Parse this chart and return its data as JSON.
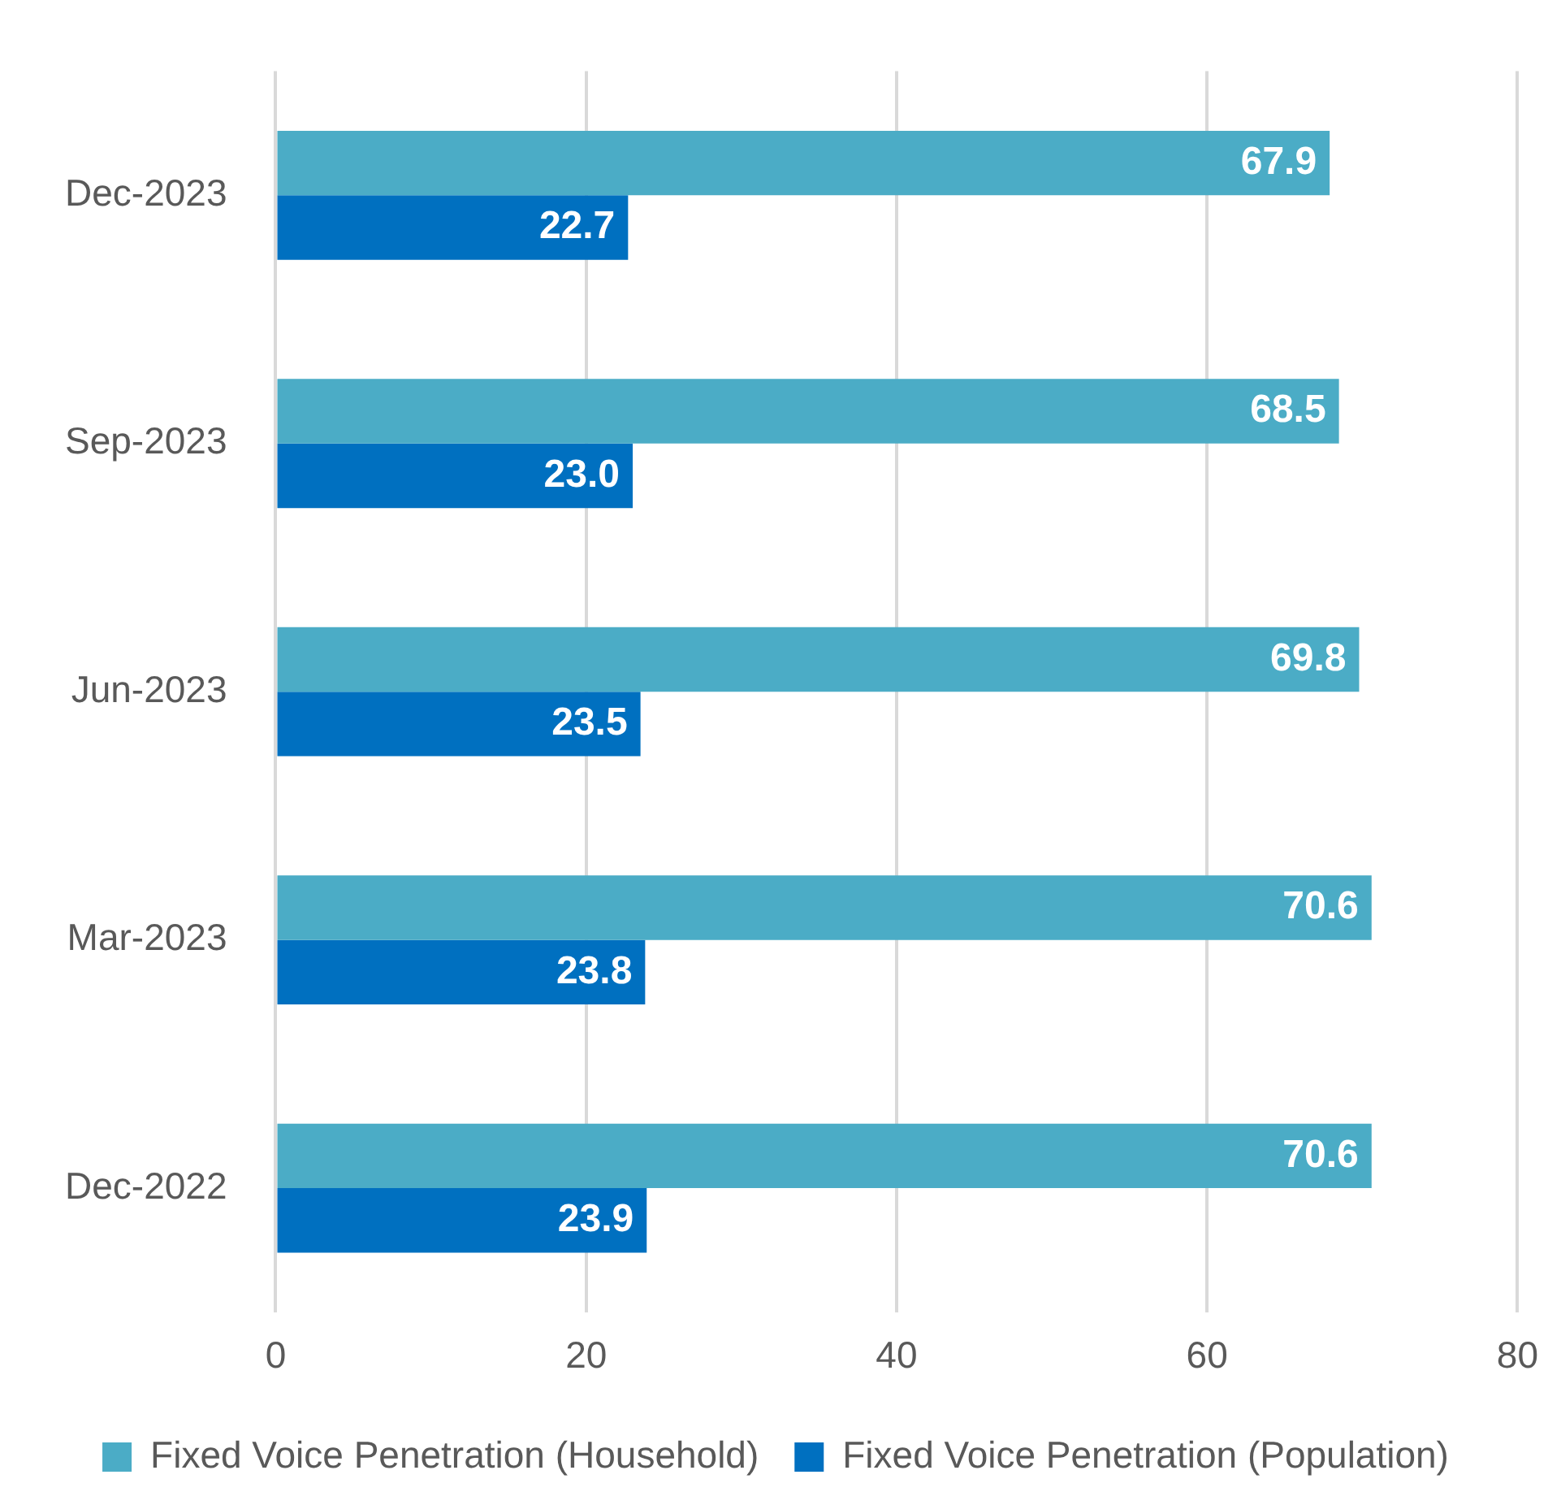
{
  "chart_data": {
    "type": "bar",
    "orientation": "horizontal",
    "categories": [
      "Dec-2023",
      "Sep-2023",
      "Jun-2023",
      "Mar-2023",
      "Dec-2022"
    ],
    "series": [
      {
        "name": "Fixed Voice Penetration (Household)",
        "color": "#4bacc6",
        "values": [
          67.9,
          68.5,
          69.8,
          70.6,
          70.6
        ],
        "value_labels": [
          "67.9",
          "68.5",
          "69.8",
          "70.6",
          "70.6"
        ]
      },
      {
        "name": "Fixed Voice Penetration (Population)",
        "color": "#0070c0",
        "values": [
          22.7,
          23.0,
          23.5,
          23.8,
          23.9
        ],
        "value_labels": [
          "22.7",
          "23.0",
          "23.5",
          "23.8",
          "23.9"
        ]
      }
    ],
    "xlim": [
      0,
      80
    ],
    "xticks": [
      0,
      20,
      40,
      60,
      80
    ],
    "grid": "x",
    "legend": "bottom"
  }
}
